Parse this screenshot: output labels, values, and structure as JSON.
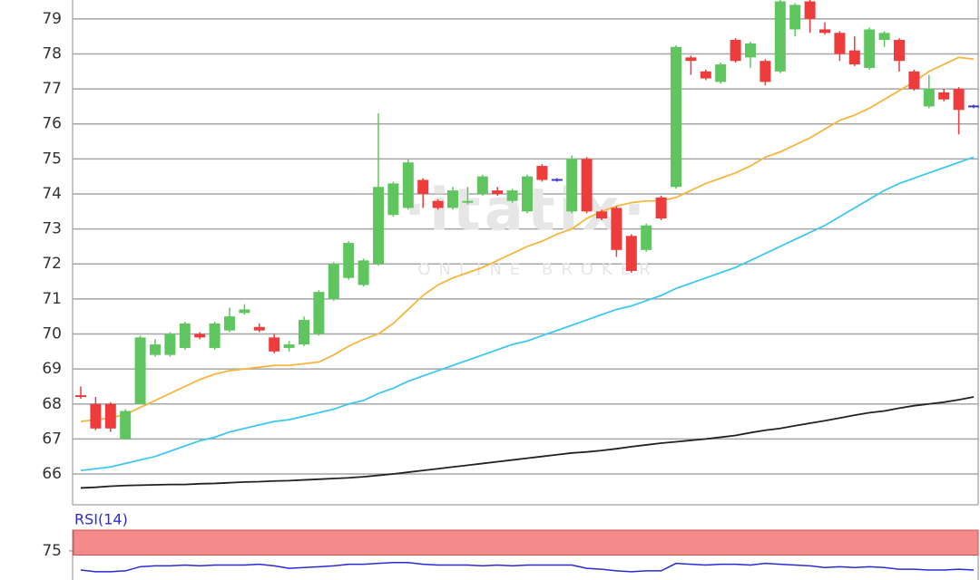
{
  "chart_data": [
    {
      "type": "candlestick",
      "open": [
        68.25,
        68.0,
        68.0,
        67.0,
        68.0,
        69.4,
        69.4,
        69.6,
        70.0,
        69.6,
        70.1,
        70.6,
        70.2,
        69.9,
        69.6,
        69.7,
        70.0,
        71.0,
        71.6,
        71.4,
        72.0,
        73.4,
        73.6,
        74.4,
        73.8,
        73.6,
        73.75,
        74.0,
        74.1,
        73.8,
        73.5,
        74.8,
        74.4,
        73.5,
        75.0,
        73.5,
        73.6,
        72.8,
        72.4,
        73.9,
        74.2,
        77.9,
        77.5,
        77.2,
        78.4,
        77.9,
        77.8,
        77.5,
        78.7,
        79.5,
        78.7,
        78.6,
        78.1,
        77.6,
        78.4,
        78.4,
        77.5,
        76.5,
        76.9,
        77.0,
        76.5
      ],
      "high": [
        68.5,
        68.2,
        68.05,
        67.85,
        69.95,
        69.85,
        70.05,
        70.35,
        70.05,
        70.35,
        70.75,
        70.85,
        70.3,
        70.0,
        69.8,
        70.5,
        71.25,
        72.05,
        72.65,
        72.15,
        76.3,
        74.35,
        75.0,
        74.45,
        73.85,
        74.2,
        74.2,
        74.55,
        74.2,
        74.15,
        74.55,
        74.85,
        74.45,
        75.1,
        75.05,
        73.55,
        73.65,
        72.85,
        73.15,
        73.95,
        78.25,
        77.95,
        77.55,
        77.75,
        78.45,
        78.35,
        77.85,
        79.55,
        79.45,
        79.55,
        78.9,
        78.65,
        78.5,
        78.75,
        78.65,
        78.45,
        77.55,
        77.4,
        77.0,
        77.05,
        76.55
      ],
      "low": [
        68.15,
        67.25,
        67.2,
        67.0,
        68.0,
        69.35,
        69.35,
        69.55,
        69.85,
        69.55,
        70.05,
        70.55,
        70.05,
        69.45,
        69.5,
        69.65,
        69.95,
        70.95,
        71.55,
        71.35,
        71.95,
        73.35,
        73.55,
        73.6,
        73.55,
        73.55,
        73.7,
        73.95,
        73.95,
        73.75,
        73.45,
        74.35,
        74.35,
        73.45,
        73.45,
        73.25,
        72.2,
        71.75,
        72.35,
        73.25,
        74.15,
        77.4,
        77.25,
        77.15,
        77.75,
        77.6,
        77.1,
        77.45,
        78.5,
        78.6,
        78.55,
        77.8,
        77.65,
        77.55,
        78.2,
        77.5,
        76.95,
        76.45,
        76.65,
        75.7,
        76.45
      ],
      "close": [
        68.2,
        67.3,
        67.3,
        67.8,
        69.9,
        69.7,
        70.0,
        70.3,
        69.9,
        70.3,
        70.5,
        70.7,
        70.1,
        69.5,
        69.7,
        70.4,
        71.2,
        72.0,
        72.6,
        72.1,
        74.2,
        74.3,
        74.9,
        74.0,
        73.6,
        74.1,
        73.8,
        74.5,
        74.0,
        74.1,
        74.5,
        74.4,
        74.4,
        75.0,
        73.5,
        73.3,
        72.4,
        71.8,
        73.1,
        73.3,
        78.2,
        77.8,
        77.3,
        77.7,
        77.8,
        78.3,
        77.2,
        79.5,
        79.4,
        79.0,
        78.6,
        78.0,
        77.7,
        78.7,
        78.6,
        77.8,
        77.0,
        77.0,
        76.7,
        76.4,
        76.5
      ],
      "up_color": "#5fc65f",
      "down_color": "#ee3b3b",
      "doji_color": "#3b3bc8",
      "lines": [
        {
          "color": "#222222",
          "values": [
            65.6,
            65.62,
            65.65,
            65.67,
            65.68,
            65.69,
            65.7,
            65.7,
            65.72,
            65.73,
            65.75,
            65.77,
            65.78,
            65.8,
            65.81,
            65.83,
            65.85,
            65.87,
            65.89,
            65.92,
            65.96,
            66.0,
            66.05,
            66.1,
            66.15,
            66.2,
            66.25,
            66.3,
            66.35,
            66.4,
            66.45,
            66.5,
            66.55,
            66.6,
            66.63,
            66.67,
            66.72,
            66.78,
            66.83,
            66.88,
            66.92,
            66.96,
            67.0,
            67.05,
            67.1,
            67.18,
            67.25,
            67.3,
            67.38,
            67.45,
            67.52,
            67.6,
            67.68,
            67.75,
            67.8,
            67.88,
            67.95,
            68.0,
            68.05,
            68.12,
            68.2
          ]
        },
        {
          "color": "#3ec8f0",
          "values": [
            66.1,
            66.15,
            66.2,
            66.3,
            66.4,
            66.5,
            66.65,
            66.8,
            66.95,
            67.05,
            67.2,
            67.3,
            67.4,
            67.5,
            67.55,
            67.65,
            67.75,
            67.85,
            68.0,
            68.1,
            68.3,
            68.45,
            68.65,
            68.8,
            68.95,
            69.1,
            69.25,
            69.4,
            69.55,
            69.7,
            69.8,
            69.95,
            70.1,
            70.25,
            70.4,
            70.55,
            70.7,
            70.8,
            70.95,
            71.1,
            71.3,
            71.45,
            71.6,
            71.75,
            71.9,
            72.1,
            72.3,
            72.5,
            72.7,
            72.9,
            73.1,
            73.35,
            73.6,
            73.85,
            74.1,
            74.3,
            74.45,
            74.6,
            74.75,
            74.9,
            75.05
          ]
        },
        {
          "color": "#f5b53f",
          "values": [
            67.5,
            67.55,
            67.6,
            67.7,
            67.9,
            68.1,
            68.3,
            68.5,
            68.7,
            68.85,
            68.95,
            69.0,
            69.05,
            69.1,
            69.1,
            69.15,
            69.2,
            69.4,
            69.65,
            69.85,
            70.0,
            70.3,
            70.7,
            71.1,
            71.4,
            71.6,
            71.75,
            71.9,
            72.1,
            72.3,
            72.5,
            72.65,
            72.85,
            73.0,
            73.3,
            73.5,
            73.65,
            73.75,
            73.8,
            73.8,
            73.9,
            74.1,
            74.3,
            74.45,
            74.6,
            74.8,
            75.05,
            75.2,
            75.4,
            75.6,
            75.85,
            76.1,
            76.25,
            76.45,
            76.7,
            76.95,
            77.2,
            77.5,
            77.7,
            77.9,
            77.85
          ]
        }
      ],
      "ylim": [
        65.12,
        79.54
      ],
      "yticks": [
        66,
        67,
        68,
        69,
        70,
        71,
        72,
        73,
        74,
        75,
        76,
        77,
        78,
        79
      ],
      "grid": true,
      "watermark": "·itatix·",
      "watermark_subtitle": "ONLINE BROKER"
    },
    {
      "type": "line",
      "title": "RSI(14)",
      "color": "#2a2ad8",
      "values": [
        52,
        50,
        50,
        51,
        56,
        57,
        57,
        58,
        57,
        58,
        58,
        58,
        59,
        57,
        54,
        55,
        56,
        57,
        59,
        59,
        60,
        61,
        61,
        59,
        58,
        58,
        58,
        57,
        58,
        57,
        58,
        58,
        58,
        58,
        54,
        53,
        51,
        50,
        51,
        51,
        60,
        59,
        58,
        59,
        59,
        58,
        60,
        59,
        58,
        57,
        55,
        56,
        55,
        56,
        55,
        53,
        53,
        52,
        52,
        53,
        52
      ],
      "ylim": [
        40,
        100
      ],
      "yticks": [
        75
      ],
      "band": [
        70,
        100
      ],
      "band_color": "#f48a8a"
    }
  ]
}
